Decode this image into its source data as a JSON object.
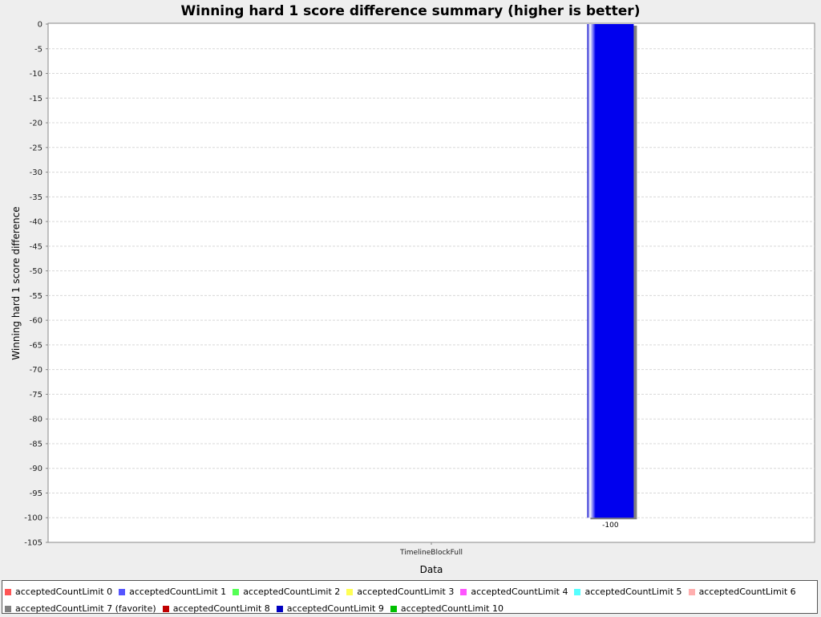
{
  "chart_data": {
    "type": "bar",
    "title": "Winning hard 1 score difference summary (higher is better)",
    "xlabel": "Data",
    "ylabel": "Winning hard 1 score difference",
    "categories": [
      "TimelineBlockFull"
    ],
    "ylim": [
      -105,
      0
    ],
    "ytick_step": 5,
    "grid": true,
    "legend_position": "bottom",
    "series": [
      {
        "name": "acceptedCountLimit 0",
        "color": "#ff5555",
        "values": [
          null
        ]
      },
      {
        "name": "acceptedCountLimit 1",
        "color": "#5555ff",
        "values": [
          null
        ]
      },
      {
        "name": "acceptedCountLimit 2",
        "color": "#55ff55",
        "values": [
          null
        ]
      },
      {
        "name": "acceptedCountLimit 3",
        "color": "#ffff55",
        "values": [
          null
        ]
      },
      {
        "name": "acceptedCountLimit 4",
        "color": "#ff55ff",
        "values": [
          null
        ]
      },
      {
        "name": "acceptedCountLimit 5",
        "color": "#55ffff",
        "values": [
          null
        ]
      },
      {
        "name": "acceptedCountLimit 6",
        "color": "#ffafaf",
        "values": [
          null
        ]
      },
      {
        "name": "acceptedCountLimit 7 (favorite)",
        "color": "#808080",
        "values": [
          null
        ]
      },
      {
        "name": "acceptedCountLimit 8",
        "color": "#c00000",
        "values": [
          null
        ]
      },
      {
        "name": "acceptedCountLimit 9",
        "color": "#0000c0",
        "values": [
          -100
        ],
        "bar_color": "#0000ee"
      },
      {
        "name": "acceptedCountLimit 10",
        "color": "#00c000",
        "values": [
          null
        ]
      }
    ],
    "data_labels": [
      "-100"
    ]
  }
}
